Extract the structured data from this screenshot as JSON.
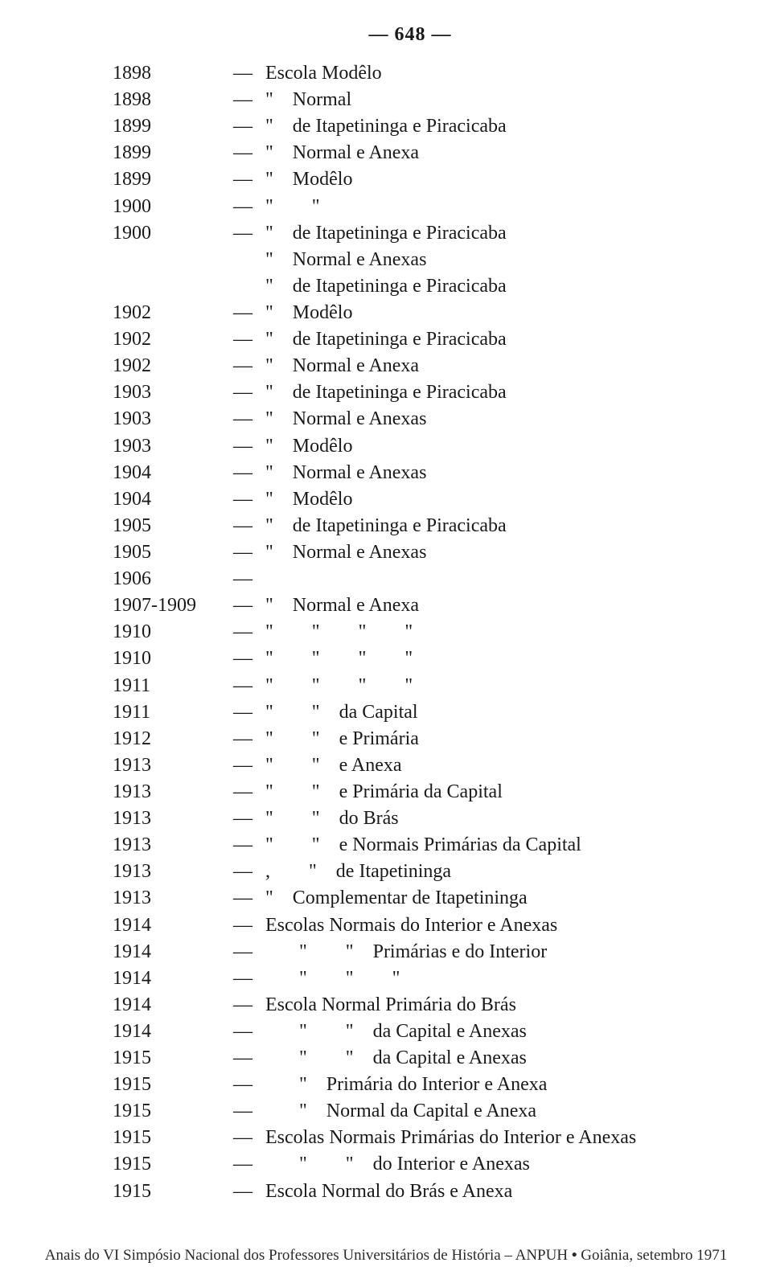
{
  "page_number": "— 648 —",
  "dash": "—",
  "ditto": "\"",
  "comma": ",",
  "entries": [
    {
      "year": "1898",
      "desc": "Escola Modêlo"
    },
    {
      "year": "1898",
      "desc": "\"   Normal"
    },
    {
      "year": "1899",
      "desc": "\"   de Itapetininga e Piracicaba"
    },
    {
      "year": "1899",
      "desc": "\"   Normal e Anexa"
    },
    {
      "year": "1899",
      "desc": "\"   Modêlo"
    },
    {
      "year": "1900",
      "desc": "\"      \""
    },
    {
      "year": "1900",
      "desc": "\"   de Itapetininga e Piracicaba"
    },
    {
      "year": "",
      "desc": "\"   Normal e Anexas"
    },
    {
      "year": "",
      "desc": "\"   de Itapetininga e Piracicaba"
    },
    {
      "year": "1902",
      "desc": "\"   Modêlo"
    },
    {
      "year": "1902",
      "desc": "\"   de Itapetininga e Piracicaba"
    },
    {
      "year": "1902",
      "desc": "\"   Normal e Anexa"
    },
    {
      "year": "1903",
      "desc": "\"   de Itapetininga e Piracicaba"
    },
    {
      "year": "1903",
      "desc": "\"   Normal e Anexas"
    },
    {
      "year": "1903",
      "desc": "\"   Modêlo"
    },
    {
      "year": "1904",
      "desc": "\"   Normal e Anexas"
    },
    {
      "year": "1904",
      "desc": "\"   Modêlo"
    },
    {
      "year": "1905",
      "desc": "\"   de Itapetininga e Piracicaba"
    },
    {
      "year": "1905",
      "desc": "\"   Normal e Anexas"
    },
    {
      "year": "1906",
      "desc": ""
    },
    {
      "year": "1907-1909",
      "desc": "\"   Normal e Anexa"
    },
    {
      "year": "1910",
      "desc": "\"      \"      \"      \""
    },
    {
      "year": "1910",
      "desc": "\"      \"      \"      \""
    },
    {
      "year": "1911",
      "desc": "\"      \"      \"      \""
    },
    {
      "year": "1911",
      "desc": "\"      \"   da Capital"
    },
    {
      "year": "1912",
      "desc": "\"      \"   e Primária"
    },
    {
      "year": "1913",
      "desc": "\"      \"   e Anexa"
    },
    {
      "year": "1913",
      "desc": "\"      \"   e Primária da Capital"
    },
    {
      "year": "1913",
      "desc": "\"      \"   do Brás"
    },
    {
      "year": "1913",
      "desc": "\"      \"   e Normais Primárias da Capital"
    },
    {
      "year": "1913",
      "desc": ",      \"   de Itapetininga"
    },
    {
      "year": "1913",
      "desc": "\"   Complementar de Itapetininga"
    },
    {
      "year": "1914",
      "desc": "Escolas Normais do Interior e Anexas"
    },
    {
      "year": "1914",
      "desc": "     \"      \"   Primárias e do Interior"
    },
    {
      "year": "1914",
      "desc": "     \"      \"      \""
    },
    {
      "year": "1914",
      "desc": "Escola Normal Primária do Brás"
    },
    {
      "year": "1914",
      "desc": "     \"      \"   da Capital e Anexas"
    },
    {
      "year": "1915",
      "desc": "     \"      \"   da Capital e Anexas"
    },
    {
      "year": "1915",
      "desc": "     \"   Primária do Interior e Anexa"
    },
    {
      "year": "1915",
      "desc": "     \"   Normal da Capital e Anexa"
    },
    {
      "year": "1915",
      "desc": "Escolas Normais Primárias do Interior e Anexas"
    },
    {
      "year": "1915",
      "desc": "     \"      \"   do Interior e Anexas"
    },
    {
      "year": "1915",
      "desc": "Escola Normal do Brás e Anexa"
    }
  ],
  "footer": {
    "left": "Anais do VI Simpósio Nacional dos Professores Universitários de História – ANPUH",
    "right": "Goiânia, setembro 1971",
    "separator": " • "
  }
}
